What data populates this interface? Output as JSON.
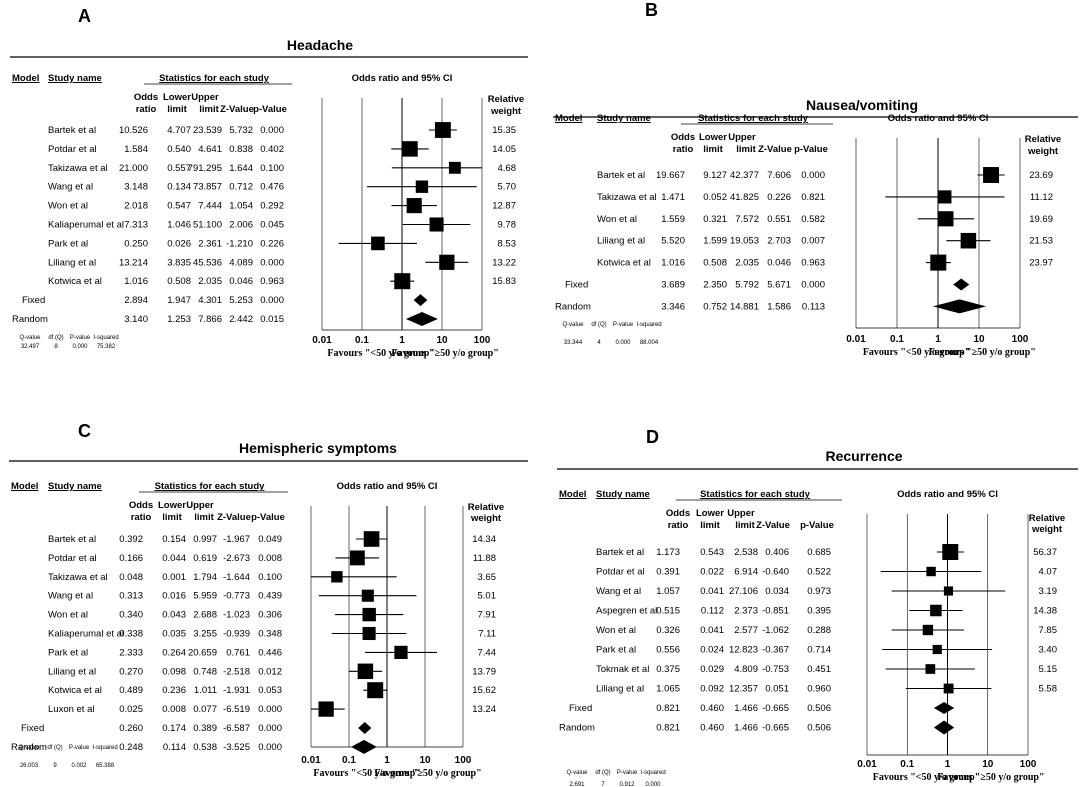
{
  "figure": {
    "header": {
      "model": "Model",
      "study_name": "Study name",
      "stats": "Statistics for each study",
      "or_ci": "Odds ratio and 95% CI",
      "odds": "Odds",
      "ratio": "ratio",
      "lower": "Lower",
      "upper": "Upper",
      "limit": "limit",
      "zval": "Z-Value",
      "pval": "p-Value",
      "relative": "Relative",
      "weight": "weight",
      "q_labels": [
        "Q-value",
        "df (Q)",
        "P-value",
        "I-squared"
      ],
      "ticks": [
        "0.01",
        "0.1",
        "1",
        "10",
        "100"
      ],
      "favours_left": "Favours \"<50 y/o group\"",
      "favours_right": "Favours \"≥50 y/o group\""
    }
  },
  "chart_data": [
    {
      "type": "forest",
      "letter": "A",
      "title": "Headache",
      "xscale": "log",
      "xlim": [
        0.01,
        100
      ],
      "studies": [
        {
          "name": "Bartek et al",
          "or": "10.526",
          "lower": "4.707",
          "upper": "23.539",
          "z": "5.732",
          "p": "0.000",
          "weight": "15.35",
          "v": [
            10.526,
            4.707,
            23.539
          ],
          "w": 15.35
        },
        {
          "name": "Potdar et al",
          "or": "1.584",
          "lower": "0.540",
          "upper": "4.641",
          "z": "0.838",
          "p": "0.402",
          "weight": "14.05",
          "v": [
            1.584,
            0.54,
            4.641
          ],
          "w": 14.05
        },
        {
          "name": "Takizawa et al",
          "or": "21.000",
          "lower": "0.557",
          "upper": "791.295",
          "z": "1.644",
          "p": "0.100",
          "weight": "4.68",
          "v": [
            21.0,
            0.557,
            791.295
          ],
          "w": 4.68
        },
        {
          "name": "Wang et al",
          "or": "3.148",
          "lower": "0.134",
          "upper": "73.857",
          "z": "0.712",
          "p": "0.476",
          "weight": "5.70",
          "v": [
            3.148,
            0.134,
            73.857
          ],
          "w": 5.7
        },
        {
          "name": "Won et al",
          "or": "2.018",
          "lower": "0.547",
          "upper": "7.444",
          "z": "1.054",
          "p": "0.292",
          "weight": "12.87",
          "v": [
            2.018,
            0.547,
            7.444
          ],
          "w": 12.87
        },
        {
          "name": "Kaliaperumal et al",
          "or": "7.313",
          "lower": "1.046",
          "upper": "51.100",
          "z": "2.006",
          "p": "0.045",
          "weight": "9.78",
          "v": [
            7.313,
            1.046,
            51.1
          ],
          "w": 9.78
        },
        {
          "name": "Park et al",
          "or": "0.250",
          "lower": "0.026",
          "upper": "2.361",
          "z": "-1.210",
          "p": "0.226",
          "weight": "8.53",
          "v": [
            0.25,
            0.026,
            2.361
          ],
          "w": 8.53
        },
        {
          "name": "Liliang et al",
          "or": "13.214",
          "lower": "3.835",
          "upper": "45.536",
          "z": "4.089",
          "p": "0.000",
          "weight": "13.22",
          "v": [
            13.214,
            3.835,
            45.536
          ],
          "w": 13.22
        },
        {
          "name": "Kotwica  et al",
          "or": "1.016",
          "lower": "0.508",
          "upper": "2.035",
          "z": "0.046",
          "p": "0.963",
          "weight": "15.83",
          "v": [
            1.016,
            0.508,
            2.035
          ],
          "w": 15.83
        }
      ],
      "fixed": {
        "label": "Fixed",
        "or": "2.894",
        "lower": "1.947",
        "upper": "4.301",
        "z": "5.253",
        "p": "0.000",
        "v": [
          2.894,
          1.947,
          4.301
        ]
      },
      "random": {
        "label": "Random",
        "or": "3.140",
        "lower": "1.253",
        "upper": "7.866",
        "z": "2.442",
        "p": "0.015",
        "v": [
          3.14,
          1.253,
          7.866
        ]
      },
      "het": [
        "32.497",
        "8",
        "0.000",
        "75.382"
      ]
    },
    {
      "type": "forest",
      "letter": "B",
      "title": "Nausea/vomiting",
      "xscale": "log",
      "xlim": [
        0.01,
        100
      ],
      "studies": [
        {
          "name": "Bartek et al",
          "or": "19.667",
          "lower": "9.127",
          "upper": "42.377",
          "z": "7.606",
          "p": "0.000",
          "weight": "23.69",
          "v": [
            19.667,
            9.127,
            42.377
          ],
          "w": 23.69
        },
        {
          "name": "Takizawa et al",
          "or": "1.471",
          "lower": "0.052",
          "upper": "41.825",
          "z": "0.226",
          "p": "0.821",
          "weight": "11.12",
          "v": [
            1.471,
            0.052,
            41.825
          ],
          "w": 11.12
        },
        {
          "name": "Won et al",
          "or": "1.559",
          "lower": "0.321",
          "upper": "7.572",
          "z": "0.551",
          "p": "0.582",
          "weight": "19.69",
          "v": [
            1.559,
            0.321,
            7.572
          ],
          "w": 19.69
        },
        {
          "name": "Liliang et al",
          "or": "5.520",
          "lower": "1.599",
          "upper": "19.053",
          "z": "2.703",
          "p": "0.007",
          "weight": "21.53",
          "v": [
            5.52,
            1.599,
            19.053
          ],
          "w": 21.53
        },
        {
          "name": "Kotwica  et al",
          "or": "1.016",
          "lower": "0.508",
          "upper": "2.035",
          "z": "0.046",
          "p": "0.963",
          "weight": "23.97",
          "v": [
            1.016,
            0.508,
            2.035
          ],
          "w": 23.97
        }
      ],
      "fixed": {
        "label": "Fixed",
        "or": "3.689",
        "lower": "2.350",
        "upper": "5.792",
        "z": "5.671",
        "p": "0.000",
        "v": [
          3.689,
          2.35,
          5.792
        ]
      },
      "random": {
        "label": "Random",
        "or": "3.346",
        "lower": "0.752",
        "upper": "14.881",
        "z": "1.586",
        "p": "0.113",
        "v": [
          3.346,
          0.752,
          14.881
        ]
      },
      "het": [
        "33.344",
        "4",
        "0.000",
        "88.004"
      ]
    },
    {
      "type": "forest",
      "letter": "C",
      "title": "Hemispheric symptoms",
      "xscale": "log",
      "xlim": [
        0.01,
        100
      ],
      "studies": [
        {
          "name": "Bartek et al",
          "or": "0.392",
          "lower": "0.154",
          "upper": "0.997",
          "z": "-1.967",
          "p": "0.049",
          "weight": "14.34",
          "v": [
            0.392,
            0.154,
            0.997
          ],
          "w": 14.34
        },
        {
          "name": "Potdar et al",
          "or": "0.166",
          "lower": "0.044",
          "upper": "0.619",
          "z": "-2.673",
          "p": "0.008",
          "weight": "11.88",
          "v": [
            0.166,
            0.044,
            0.619
          ],
          "w": 11.88
        },
        {
          "name": "Takizawa et al",
          "or": "0.048",
          "lower": "0.001",
          "upper": "1.794",
          "z": "-1.644",
          "p": "0.100",
          "weight": "3.65",
          "v": [
            0.048,
            0.001,
            1.794
          ],
          "w": 3.65
        },
        {
          "name": "Wang et al",
          "or": "0.313",
          "lower": "0.016",
          "upper": "5.959",
          "z": "-0.773",
          "p": "0.439",
          "weight": "5.01",
          "v": [
            0.313,
            0.016,
            5.959
          ],
          "w": 5.01
        },
        {
          "name": "Won et al",
          "or": "0.340",
          "lower": "0.043",
          "upper": "2.688",
          "z": "-1.023",
          "p": "0.306",
          "weight": "7.91",
          "v": [
            0.34,
            0.043,
            2.688
          ],
          "w": 7.91
        },
        {
          "name": "Kaliaperumal et al",
          "or": "0.338",
          "lower": "0.035",
          "upper": "3.255",
          "z": "-0.939",
          "p": "0.348",
          "weight": "7.11",
          "v": [
            0.338,
            0.035,
            3.255
          ],
          "w": 7.11
        },
        {
          "name": "Park et al",
          "or": "2.333",
          "lower": "0.264",
          "upper": "20.659",
          "z": "0.761",
          "p": "0.446",
          "weight": "7.44",
          "v": [
            2.333,
            0.264,
            20.659
          ],
          "w": 7.44
        },
        {
          "name": "Liliang et al",
          "or": "0.270",
          "lower": "0.098",
          "upper": "0.748",
          "z": "-2.518",
          "p": "0.012",
          "weight": "13.79",
          "v": [
            0.27,
            0.098,
            0.748
          ],
          "w": 13.79
        },
        {
          "name": "Kotwica et al",
          "or": "0.489",
          "lower": "0.236",
          "upper": "1.011",
          "z": "-1.931",
          "p": "0.053",
          "weight": "15.62",
          "v": [
            0.489,
            0.236,
            1.011
          ],
          "w": 15.62
        },
        {
          "name": "Luxon et al",
          "or": "0.025",
          "lower": "0.008",
          "upper": "0.077",
          "z": "-6.519",
          "p": "0.000",
          "weight": "13.24",
          "v": [
            0.025,
            0.008,
            0.077
          ],
          "w": 13.24
        }
      ],
      "fixed": {
        "label": "Fixed",
        "or": "0.260",
        "lower": "0.174",
        "upper": "0.389",
        "z": "-6.587",
        "p": "0.000",
        "v": [
          0.26,
          0.174,
          0.389
        ]
      },
      "random": {
        "label": "Random",
        "or": "0.248",
        "lower": "0.114",
        "upper": "0.538",
        "z": "-3.525",
        "p": "0.000",
        "v": [
          0.248,
          0.114,
          0.538
        ]
      },
      "het": [
        "26.003",
        "9",
        "0.002",
        "65.388"
      ]
    },
    {
      "type": "forest",
      "letter": "D",
      "title": "Recurrence",
      "xscale": "log",
      "xlim": [
        0.01,
        100
      ],
      "studies": [
        {
          "name": "Bartek et al",
          "or": "1.173",
          "lower": "0.543",
          "upper": "2.538",
          "z": "0.406",
          "p": "0.685",
          "weight": "56.37",
          "v": [
            1.173,
            0.543,
            2.538
          ],
          "w": 56.37
        },
        {
          "name": "Potdar et al",
          "or": "0.391",
          "lower": "0.022",
          "upper": "6.914",
          "z": "-0.640",
          "p": "0.522",
          "weight": "4.07",
          "v": [
            0.391,
            0.022,
            6.914
          ],
          "w": 4.07
        },
        {
          "name": "Wang et al",
          "or": "1.057",
          "lower": "0.041",
          "upper": "27.106",
          "z": "0.034",
          "p": "0.973",
          "weight": "3.19",
          "v": [
            1.057,
            0.041,
            27.106
          ],
          "w": 3.19
        },
        {
          "name": "Aspegren et al",
          "or": "0.515",
          "lower": "0.112",
          "upper": "2.373",
          "z": "-0.851",
          "p": "0.395",
          "weight": "14.38",
          "v": [
            0.515,
            0.112,
            2.373
          ],
          "w": 14.38
        },
        {
          "name": "Won et al",
          "or": "0.326",
          "lower": "0.041",
          "upper": "2.577",
          "z": "-1.062",
          "p": "0.288",
          "weight": "7.85",
          "v": [
            0.326,
            0.041,
            2.577
          ],
          "w": 7.85
        },
        {
          "name": "Park et al",
          "or": "0.556",
          "lower": "0.024",
          "upper": "12.823",
          "z": "-0.367",
          "p": "0.714",
          "weight": "3.40",
          "v": [
            0.556,
            0.024,
            12.823
          ],
          "w": 3.4
        },
        {
          "name": "Tokmak et al",
          "or": "0.375",
          "lower": "0.029",
          "upper": "4.809",
          "z": "-0.753",
          "p": "0.451",
          "weight": "5.15",
          "v": [
            0.375,
            0.029,
            4.809
          ],
          "w": 5.15
        },
        {
          "name": "Liliang et al",
          "or": "1.065",
          "lower": "0.092",
          "upper": "12.357",
          "z": "0.051",
          "p": "0.960",
          "weight": "5.58",
          "v": [
            1.065,
            0.092,
            12.357
          ],
          "w": 5.58
        }
      ],
      "fixed": {
        "label": "Fixed",
        "or": "0.821",
        "lower": "0.460",
        "upper": "1.466",
        "z": "-0.665",
        "p": "0.506",
        "v": [
          0.821,
          0.46,
          1.466
        ]
      },
      "random": {
        "label": "Random",
        "or": "0.821",
        "lower": "0.460",
        "upper": "1.466",
        "z": "-0.665",
        "p": "0.506",
        "v": [
          0.821,
          0.46,
          1.466
        ]
      },
      "het": [
        "2.691",
        "7",
        "0.912",
        "0.000"
      ]
    }
  ]
}
